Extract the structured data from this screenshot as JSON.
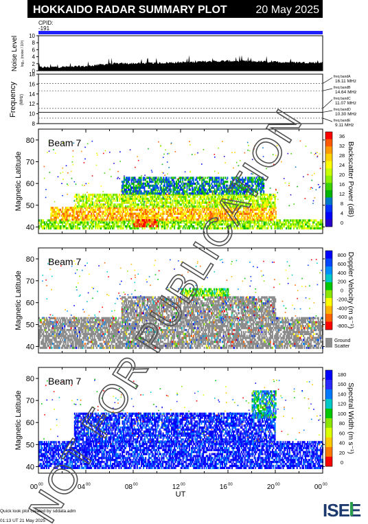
{
  "header": {
    "title": "HOKKAIDO RADAR SUMMARY PLOT",
    "date": "20 May 2025",
    "cpid_label": "CPID:",
    "cpid_value": "-191",
    "cpid_bar_color": "#2020ff",
    "title_bg": "#000000"
  },
  "watermark": "NOT FOR PUBLICATION",
  "noise_panel": {
    "ylabel": "Noise Level",
    "ylabel_sub": "log₁₀ (noise / 10³)",
    "yticks": [
      "0",
      "2",
      "4",
      "6",
      "8",
      "10"
    ]
  },
  "freq_panel": {
    "ylabel": "Frequency",
    "ylabel_sub": "(MHz)",
    "yticks": [
      "8",
      "10",
      "12",
      "14",
      "16",
      "18"
    ],
    "bands": [
      {
        "label": "freq bandA",
        "value": "16.11 MHz"
      },
      {
        "label": "freq bandB",
        "value": "14.64 MHz"
      },
      {
        "label": "freq bandC",
        "value": "11.07 MHz"
      },
      {
        "label": "freq bandD",
        "value": "10.30 MHz"
      },
      {
        "label": "freq bandE",
        "value": "9.11 MHz"
      }
    ]
  },
  "beam_panels": [
    {
      "beam_label": "Beam",
      "beam_number": "7",
      "ylabel": "Magnetic Latitude",
      "yticks": [
        "40",
        "50",
        "60",
        "70",
        "80"
      ],
      "colorbar_label": "Backscatter Power (dB)",
      "colorbar_ticks": [
        "0",
        "4",
        "8",
        "12",
        "16",
        "20",
        "24",
        "28",
        "32",
        "36"
      ],
      "colors": [
        "#ff0000",
        "#ff5a00",
        "#ff9a00",
        "#ffd200",
        "#ffff00",
        "#c8ff00",
        "#8cf000",
        "#3cd200",
        "#00b400",
        "#0078c8",
        "#0032ff",
        "#0000ff",
        "#2800c8"
      ]
    },
    {
      "beam_label": "Beam",
      "beam_number": "7",
      "ylabel": "Magnetic Latitude",
      "yticks": [
        "40",
        "50",
        "60",
        "70",
        "80"
      ],
      "colorbar_label": "Doppler Velocity (m s⁻¹)",
      "colorbar_ticks": [
        "800",
        "600",
        "400",
        "200",
        "0",
        "-200",
        "-400",
        "-600",
        "-800"
      ],
      "ground_label": "Ground",
      "ground_label2": "Scatter",
      "colors": [
        "#0000ff",
        "#0046ff",
        "#008cff",
        "#00c8c8",
        "#00c800",
        "#8ce600",
        "#ffff00",
        "#ffb400",
        "#ff6400",
        "#ff0000"
      ]
    },
    {
      "beam_label": "Beam",
      "beam_number": "7",
      "ylabel": "Magnetic Latitude",
      "yticks": [
        "40",
        "50",
        "60",
        "70",
        "80"
      ],
      "colorbar_label": "Spectral Width (m s⁻¹)",
      "colorbar_ticks": [
        "0",
        "20",
        "40",
        "60",
        "80",
        "100",
        "120",
        "140",
        "160",
        "180"
      ],
      "colors": [
        "#0000ff",
        "#2828ff",
        "#0078ff",
        "#00c8c8",
        "#00c800",
        "#8ce600",
        "#dcff00",
        "#ffc800",
        "#ff7800",
        "#ff0000"
      ]
    }
  ],
  "x_axis": {
    "ticks": [
      "00",
      "04",
      "08",
      "12",
      "16",
      "20",
      "00"
    ],
    "tick_superscript": "00",
    "label": "UT"
  },
  "footer": {
    "line1": "Quick look plot created by sddata.adm",
    "line2": "01:13 UT 21 May 2025",
    "logo_text": "ISEE"
  },
  "chart_data": [
    {
      "type": "area",
      "title": "Noise Level",
      "xlabel": "UT",
      "ylim": [
        0,
        10
      ],
      "x": [
        0,
        2,
        4,
        6,
        8,
        10,
        12,
        14,
        16,
        18,
        20,
        22,
        24
      ],
      "values": [
        1.0,
        1.1,
        1.3,
        2.0,
        2.1,
        2.2,
        2.4,
        2.6,
        2.8,
        2.7,
        2.5,
        2.4,
        2.3
      ]
    },
    {
      "type": "line",
      "title": "Frequency",
      "ylim": [
        8,
        18
      ],
      "series": [
        {
          "name": "freq bandA",
          "values": [
            16.11
          ]
        },
        {
          "name": "freq bandB",
          "values": [
            14.64
          ]
        },
        {
          "name": "freq bandC",
          "values": [
            11.07
          ]
        },
        {
          "name": "freq bandD",
          "values": [
            10.3
          ]
        },
        {
          "name": "freq bandE",
          "values": [
            9.11
          ]
        }
      ]
    },
    {
      "type": "heatmap",
      "title": "Backscatter Power",
      "xlabel": "UT",
      "ylabel": "Magnetic Latitude",
      "xlim": [
        0,
        24
      ],
      "ylim": [
        37,
        85
      ],
      "colorbar": [
        0,
        36
      ],
      "regions": [
        {
          "t": [
            0,
            24
          ],
          "lat": [
            39,
            43
          ],
          "value": 18
        },
        {
          "t": [
            1,
            20
          ],
          "lat": [
            43,
            49
          ],
          "value": 28
        },
        {
          "t": [
            3,
            20
          ],
          "lat": [
            49,
            55
          ],
          "value": 20
        },
        {
          "t": [
            7,
            19
          ],
          "lat": [
            55,
            63
          ],
          "value": 10
        },
        {
          "t": [
            8,
            10
          ],
          "lat": [
            40,
            43
          ],
          "value": 34
        }
      ]
    },
    {
      "type": "heatmap",
      "title": "Doppler Velocity",
      "xlabel": "UT",
      "ylabel": "Magnetic Latitude",
      "xlim": [
        0,
        24
      ],
      "ylim": [
        37,
        85
      ],
      "colorbar": [
        -800,
        800
      ],
      "regions": [
        {
          "t": [
            0,
            24
          ],
          "lat": [
            39,
            53
          ],
          "value": "ground"
        },
        {
          "t": [
            7,
            20
          ],
          "lat": [
            53,
            62
          ],
          "value": "ground"
        },
        {
          "t": [
            12,
            16
          ],
          "lat": [
            63,
            66
          ],
          "value": 0
        }
      ]
    },
    {
      "type": "heatmap",
      "title": "Spectral Width",
      "xlabel": "UT",
      "ylabel": "Magnetic Latitude",
      "xlim": [
        0,
        24
      ],
      "ylim": [
        37,
        85
      ],
      "colorbar": [
        0,
        180
      ],
      "regions": [
        {
          "t": [
            0,
            24
          ],
          "lat": [
            39,
            51
          ],
          "value": 10
        },
        {
          "t": [
            3,
            20
          ],
          "lat": [
            51,
            64
          ],
          "value": 10
        },
        {
          "t": [
            18,
            20
          ],
          "lat": [
            62,
            74
          ],
          "value": 60
        }
      ]
    }
  ]
}
